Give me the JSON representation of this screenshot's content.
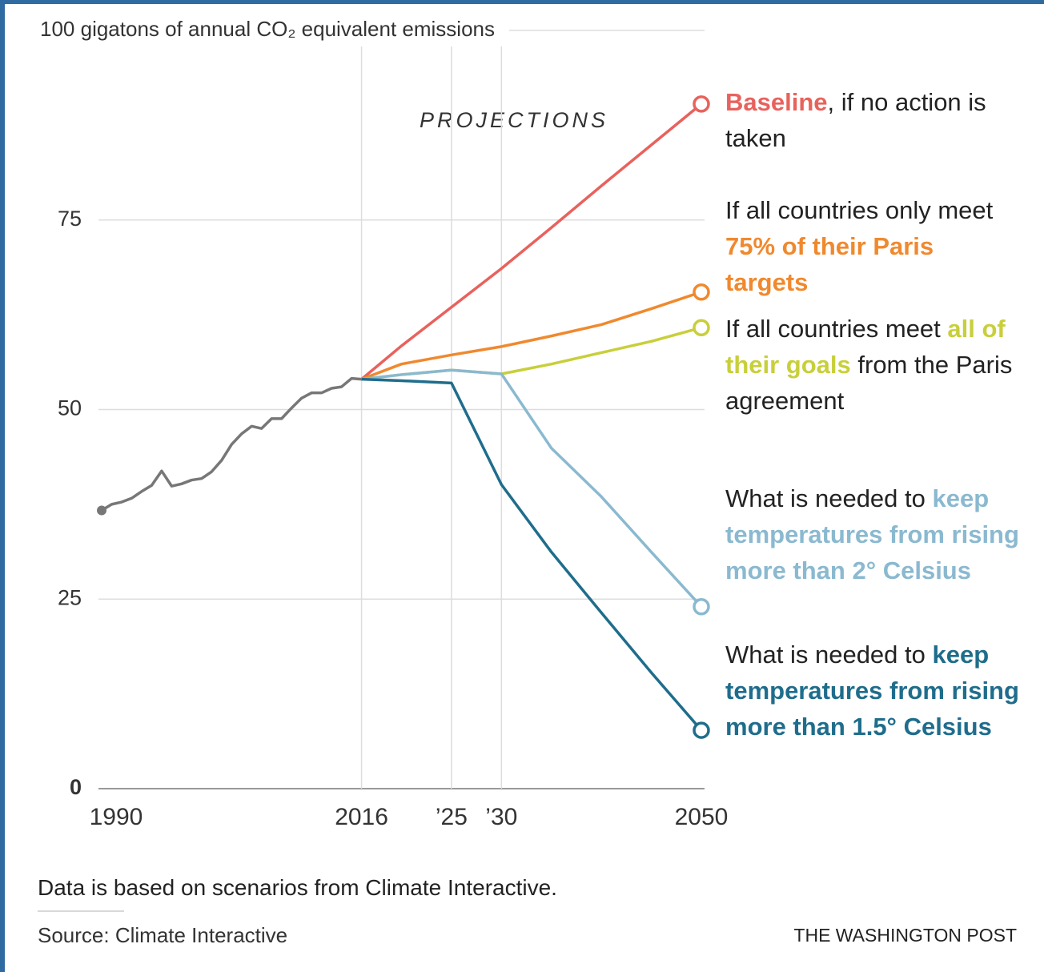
{
  "chart_data": {
    "type": "line",
    "xlim": [
      1990,
      2050
    ],
    "ylim": [
      0,
      100
    ],
    "xticks": [
      1990,
      2016,
      {
        "value": 2025,
        "label": "’25"
      },
      {
        "value": 2030,
        "label": "’30"
      },
      2050
    ],
    "yticks": [
      0,
      25,
      50,
      75,
      {
        "value": 100,
        "label": "100 gigatons of annual CO₂ equivalent emissions"
      }
    ],
    "grid": true,
    "annotations": [
      "PROJECTIONS"
    ],
    "series": [
      {
        "color": "#777777",
        "x": [
          1990,
          1991,
          1992,
          1993,
          1994,
          1995,
          1996,
          1997,
          1998,
          1999,
          2000,
          2001,
          2002,
          2003,
          2004,
          2005,
          2006,
          2007,
          2008,
          2009,
          2010,
          2011,
          2012,
          2013,
          2014,
          2015,
          2016
        ],
        "values": [
          36.7,
          37.5,
          37.8,
          38.3,
          39.2,
          40.0,
          41.9,
          39.9,
          40.2,
          40.7,
          40.9,
          41.8,
          43.3,
          45.4,
          46.8,
          47.8,
          47.5,
          48.8,
          48.8,
          50.2,
          51.5,
          52.2,
          52.2,
          52.8,
          53.0,
          54.1,
          54.0
        ]
      },
      {
        "color": "#e8625d",
        "label": [
          "Baseline",
          ", if no action is taken"
        ],
        "highlight": 0,
        "x": [
          2016,
          2020,
          2025,
          2030,
          2035,
          2040,
          2045,
          2050
        ],
        "values": [
          54.0,
          58.4,
          63.5,
          68.6,
          74.0,
          79.5,
          84.9,
          90.3
        ]
      },
      {
        "color": "#f0892e",
        "label": [
          "If all countries only meet ",
          "75% of their Paris targets"
        ],
        "highlight": 1,
        "x": [
          2016,
          2020,
          2025,
          2030,
          2035,
          2040,
          2045,
          2050
        ],
        "values": [
          54.0,
          56.0,
          57.2,
          58.3,
          59.7,
          61.2,
          63.3,
          65.5
        ]
      },
      {
        "color": "#c8cf3a",
        "label": [
          "If all countries meet ",
          "all of their goals",
          " from the Paris agreement"
        ],
        "highlight": 1,
        "x": [
          2016,
          2020,
          2025,
          2030,
          2035,
          2040,
          2045,
          2050
        ],
        "values": [
          54.0,
          54.6,
          55.2,
          54.7,
          56.0,
          57.5,
          59.0,
          60.8
        ]
      },
      {
        "color": "#8ab9d0",
        "label": [
          "What is needed to ",
          "keep temperatures from rising more than 2° Celsius"
        ],
        "highlight": 1,
        "x": [
          2016,
          2020,
          2025,
          2030,
          2035,
          2040,
          2045,
          2050
        ],
        "values": [
          54.0,
          54.6,
          55.2,
          54.7,
          44.9,
          38.5,
          31.2,
          24.0
        ]
      },
      {
        "color": "#1f6d8c",
        "label": [
          "What is needed to ",
          "keep temperatures from rising more than 1.5° Celsius"
        ],
        "highlight": 1,
        "x": [
          2016,
          2020,
          2025,
          2030,
          2035,
          2040,
          2045,
          2050
        ],
        "values": [
          54.0,
          53.8,
          53.5,
          40.1,
          31.2,
          23.2,
          15.3,
          7.7
        ]
      }
    ],
    "note": "Data is based on scenarios from Climate Interactive.",
    "source": "Source: Climate Interactive",
    "credit": "THE WASHINGTON POST"
  }
}
